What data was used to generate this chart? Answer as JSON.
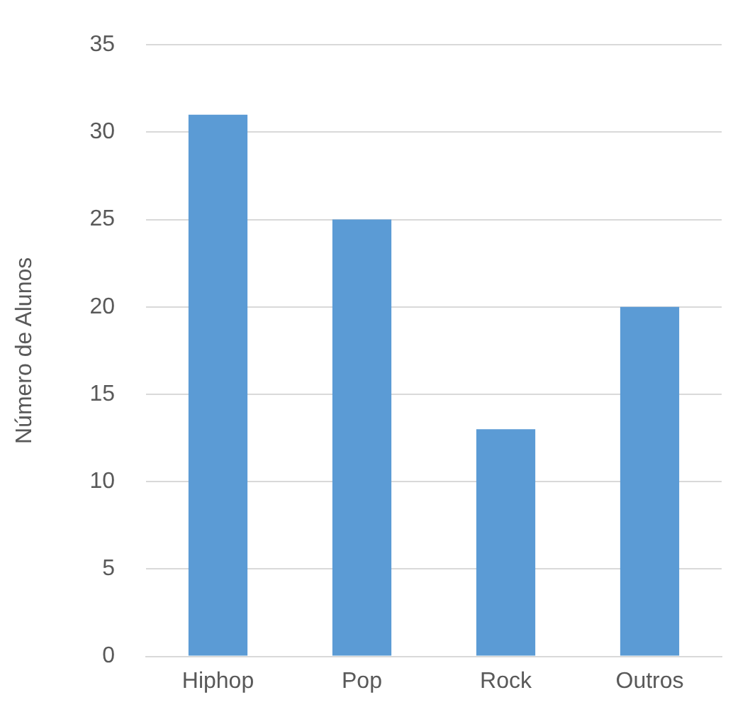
{
  "chart_data": {
    "type": "bar",
    "ylabel": "Número de Alunos",
    "categories": [
      "Hiphop",
      "Pop",
      "Rock",
      "Outros"
    ],
    "values": [
      31,
      25,
      13,
      20
    ],
    "color": "#5b9bd5",
    "ylim": [
      0,
      35
    ],
    "yticks": [
      0,
      5,
      10,
      15,
      20,
      25,
      30,
      35
    ],
    "grid": "y",
    "legend": false
  }
}
